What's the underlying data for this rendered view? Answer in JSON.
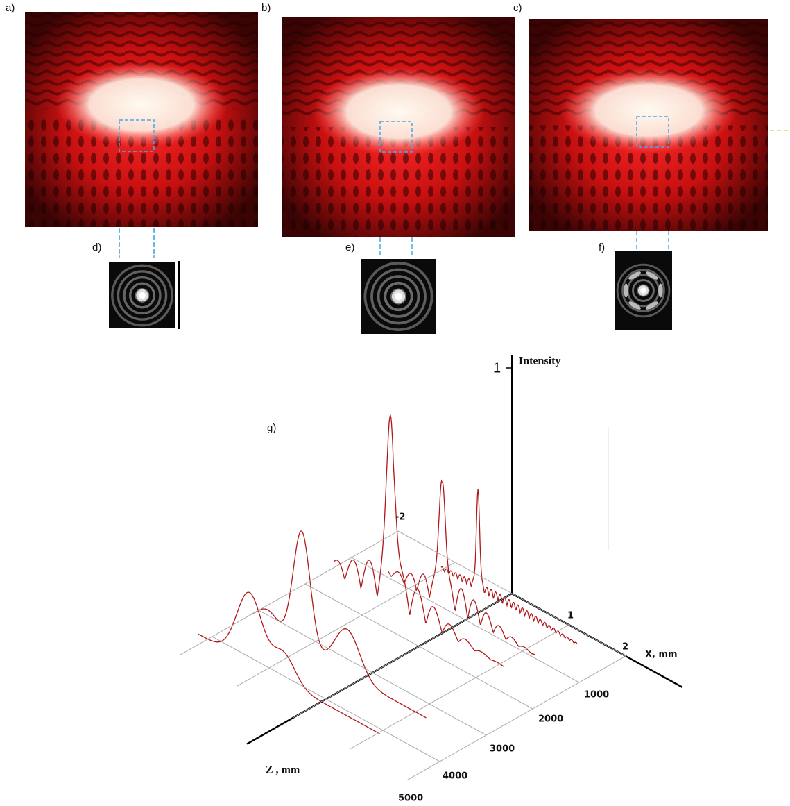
{
  "panels": {
    "a": "a)",
    "b": "b)",
    "c": "c)",
    "d": "d)",
    "e": "e)",
    "f": "f)",
    "g": "g)"
  },
  "plot": {
    "intensity_label": "Intensity",
    "intensity_tick": 1,
    "x_label": "X, mm",
    "x_ticks": [
      -2,
      1,
      2
    ],
    "z_label": "Z , mm",
    "z_ticks": [
      1000,
      2000,
      3000,
      4000,
      5000
    ]
  }
}
